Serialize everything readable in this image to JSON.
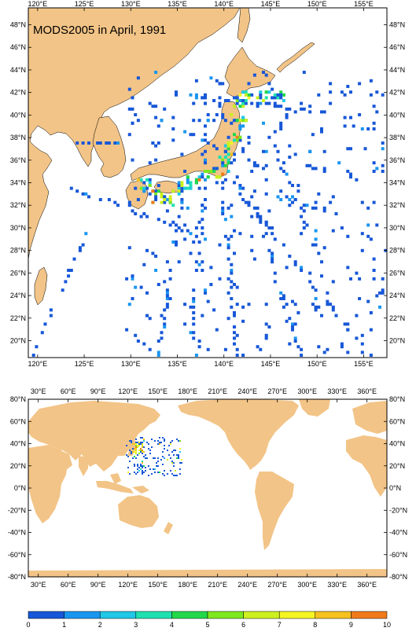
{
  "title": "MODS2005 in April, 1991",
  "colors": {
    "land": "#f2c487",
    "ocean": "#ffffff",
    "frame": "#000000"
  },
  "regional_map": {
    "lon_range": [
      119,
      157.5
    ],
    "lat_range": [
      18.5,
      49.5
    ],
    "lon_ticks": [
      "120°E",
      "125°E",
      "130°E",
      "135°E",
      "140°E",
      "145°E",
      "150°E",
      "155°E"
    ],
    "lat_ticks": [
      "20°N",
      "22°N",
      "24°N",
      "26°N",
      "28°N",
      "30°N",
      "32°N",
      "34°N",
      "36°N",
      "38°N",
      "40°N",
      "42°N",
      "44°N",
      "46°N",
      "48°N"
    ]
  },
  "global_map": {
    "lon_range": [
      20,
      380
    ],
    "lat_range": [
      -80,
      80
    ],
    "lon_ticks": [
      "30°E",
      "60°E",
      "90°E",
      "120°E",
      "150°E",
      "180°E",
      "210°E",
      "240°E",
      "270°E",
      "300°E",
      "330°E",
      "360°E"
    ],
    "lat_ticks": [
      "80°N",
      "60°N",
      "40°N",
      "20°N",
      "0°N",
      "-20°N",
      "-40°N",
      "-60°N",
      "-80°N"
    ]
  },
  "colorbar": {
    "labels": [
      "0",
      "1",
      "2",
      "3",
      "4",
      "5",
      "6",
      "7",
      "8",
      "9",
      "10"
    ],
    "colors": [
      "#1757d8",
      "#1a96f0",
      "#21c7e6",
      "#20e0b0",
      "#22d84a",
      "#7ee81e",
      "#cdf01f",
      "#f5f524",
      "#f5c21f",
      "#f07a1a"
    ]
  }
}
